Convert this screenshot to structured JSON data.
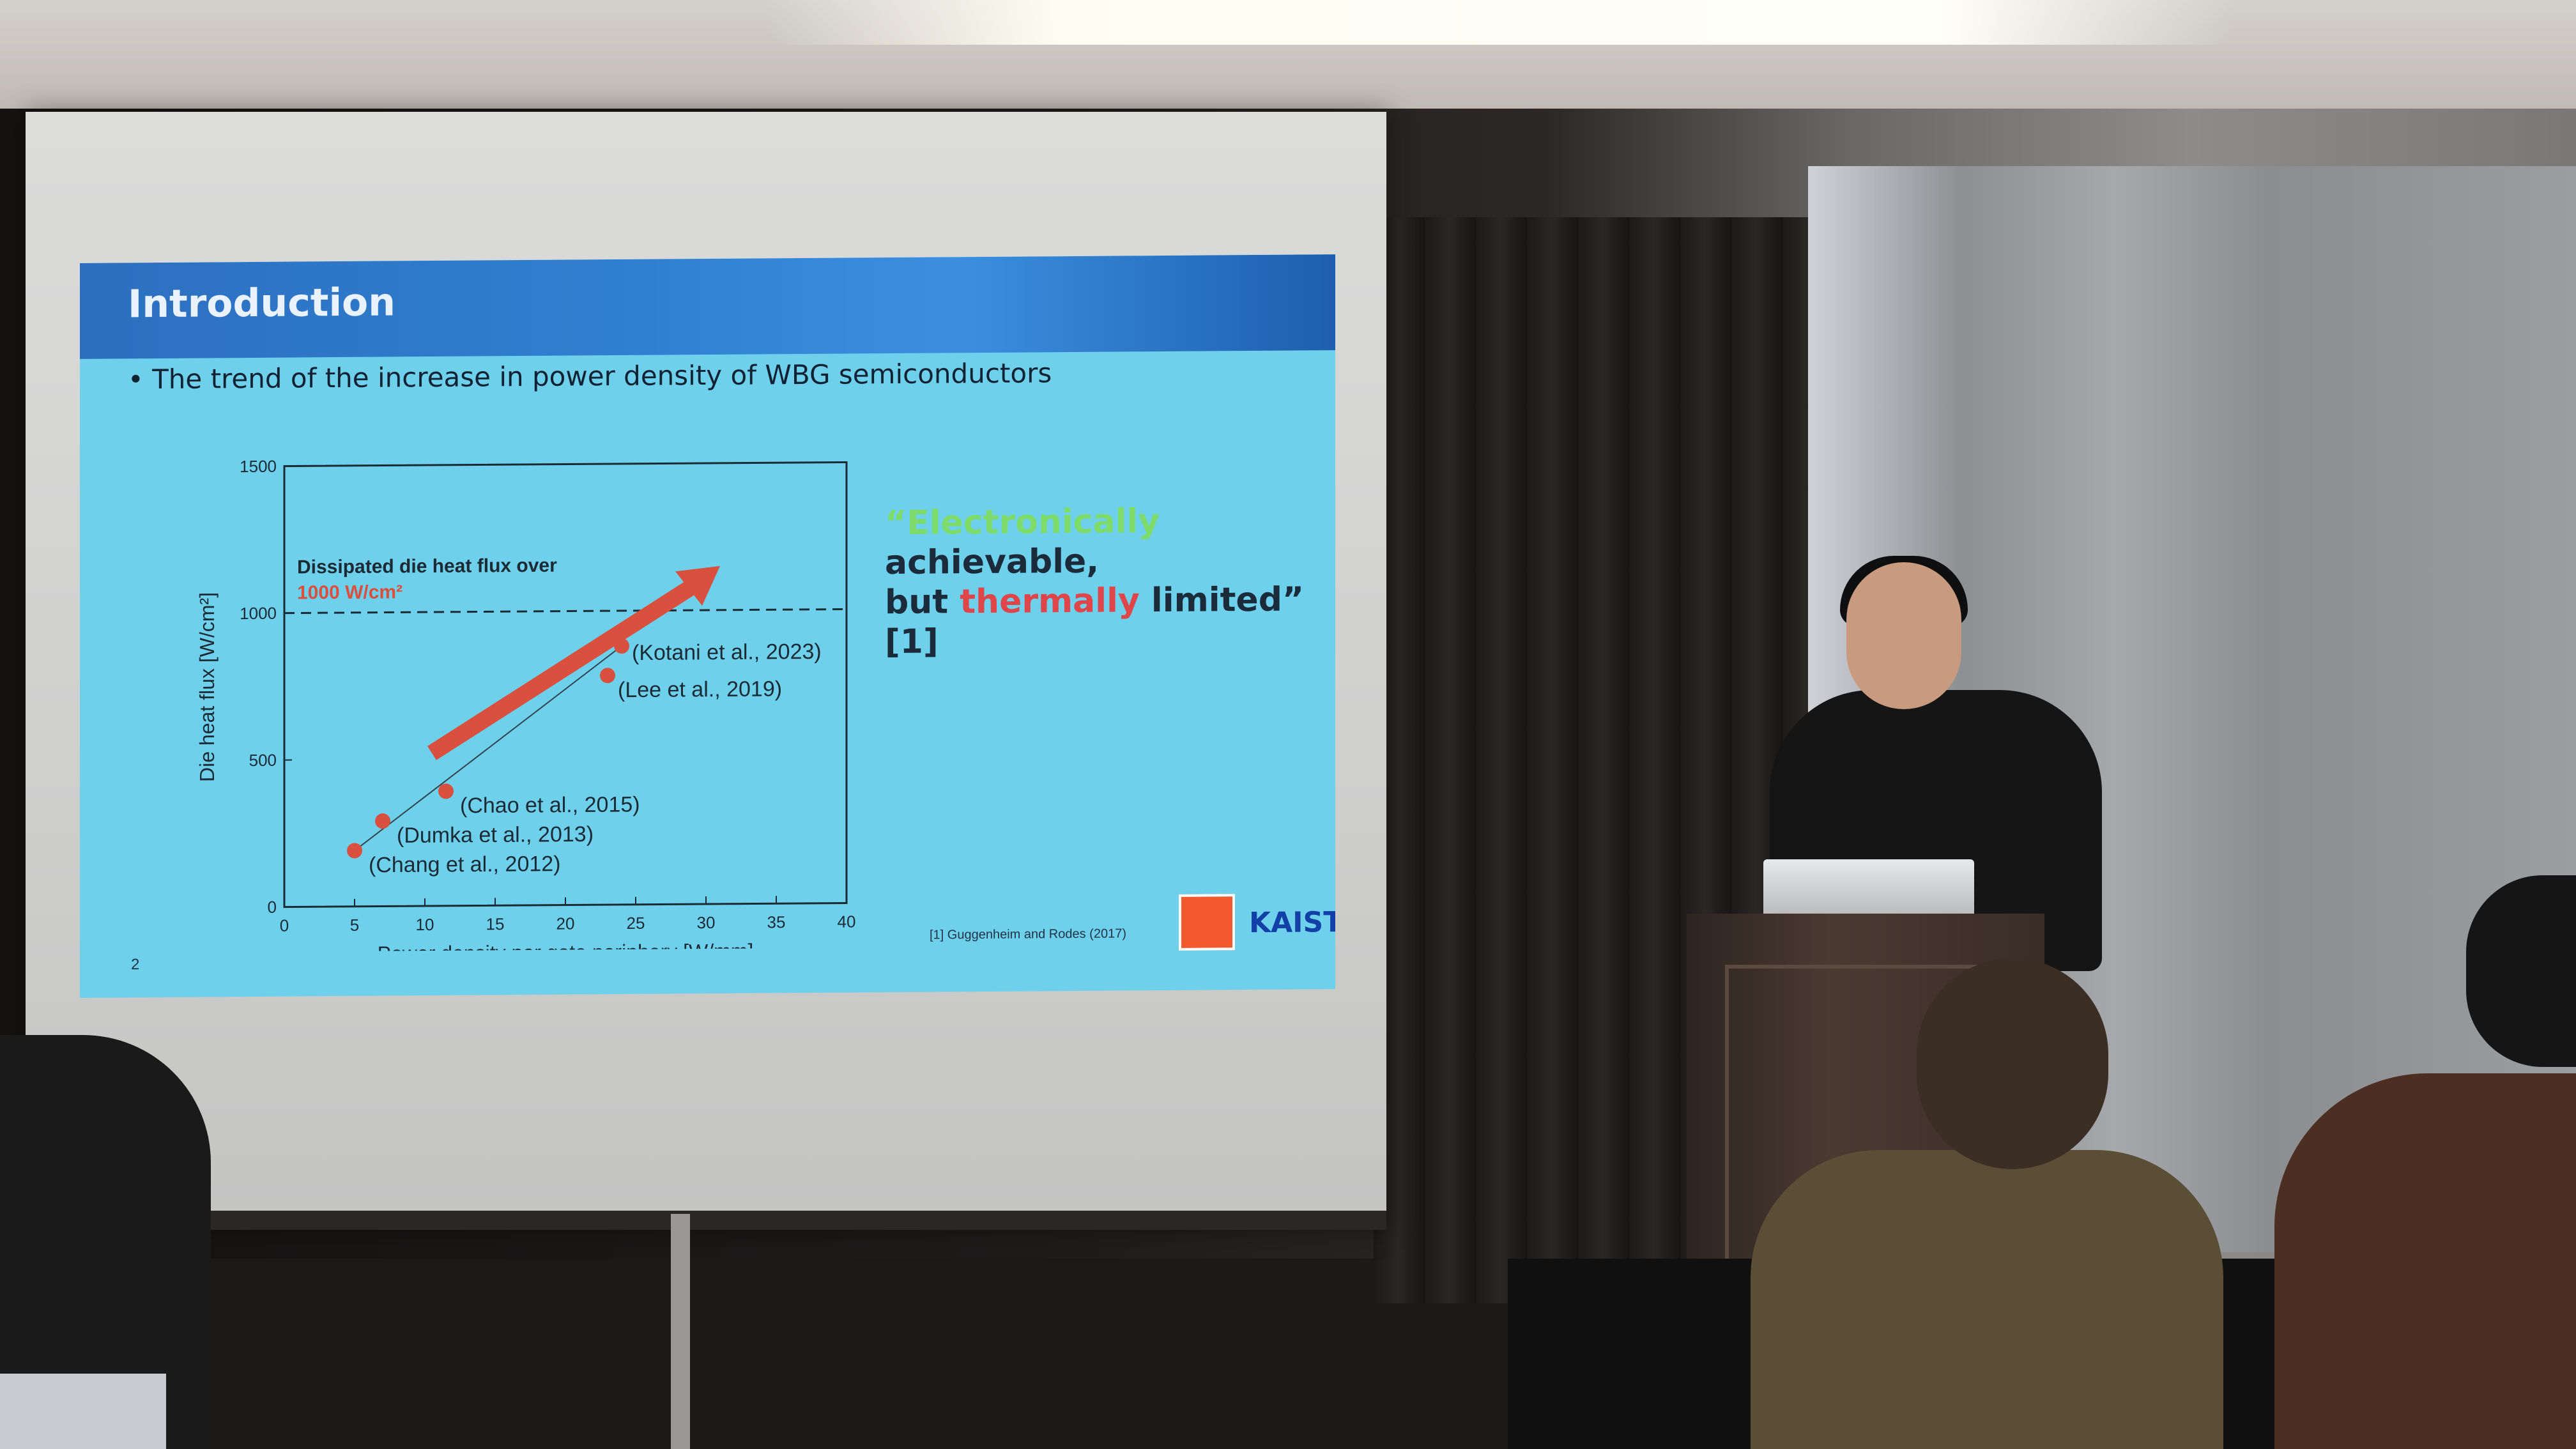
{
  "slide": {
    "title": "Introduction",
    "bullet": "• The trend of the increase in power density of WBG semiconductors",
    "quote": {
      "open_mark": "“",
      "word_electronically": "Electronically",
      "word_achievable": " achievable,",
      "word_but": "but ",
      "word_thermally": "thermally",
      "word_limited": " limited” [1]"
    },
    "reference": "[1] Guggenheim and Rodes (2017)",
    "page_number": "2",
    "logo_text": "KAIST",
    "colors": {
      "background": "#6fd0ec",
      "header": "#2f80d1",
      "arrow": "#d9503f",
      "points": "#d9503f"
    }
  },
  "chart_data": {
    "type": "scatter",
    "xlabel": "Power density per gate periphery [W/mm]",
    "ylabel": "Die heat flux [W/cm²]",
    "xlim": [
      0,
      40
    ],
    "ylim": [
      0,
      1500
    ],
    "xticks": [
      "0",
      "5",
      "10",
      "15",
      "20",
      "25",
      "30",
      "35",
      "40"
    ],
    "yticks": [
      "0",
      "500",
      "1000",
      "1500"
    ],
    "points": [
      {
        "x": 5,
        "y": 190,
        "label": "(Chang et al., 2012)"
      },
      {
        "x": 7,
        "y": 290,
        "label": "(Dumka et al., 2013)"
      },
      {
        "x": 11.5,
        "y": 390,
        "label": "(Chao et al., 2015)"
      },
      {
        "x": 23,
        "y": 780,
        "label": "(Lee et al., 2019)"
      },
      {
        "x": 24,
        "y": 880,
        "label": "(Kotani et al., 2023)"
      }
    ],
    "threshold": {
      "y": 1000,
      "label_line1": "Dissipated die heat flux over",
      "label_line2": "1000 W/cm²"
    }
  }
}
